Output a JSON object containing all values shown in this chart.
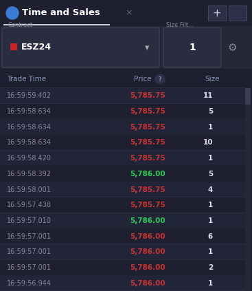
{
  "title": "Time and Sales",
  "bg_color": "#1e2030",
  "title_bar_bg": "#1e2030",
  "controls_bg": "#252838",
  "rows_bg": "#1e2030",
  "contract_label": "Contract",
  "contract_value": "ESZ24",
  "contract_box_color": "#2a2d40",
  "contract_indicator_color": "#cc2222",
  "size_filter_label": "Size Filt...",
  "size_filter_value": "1",
  "rows": [
    {
      "time": "16:59:59.402",
      "price": "5,785.75",
      "size": "11",
      "price_color": "#cc3333"
    },
    {
      "time": "16:59:58.634",
      "price": "5,785.75",
      "size": "5",
      "price_color": "#cc3333"
    },
    {
      "time": "16:59:58.634",
      "price": "5,785.75",
      "size": "1",
      "price_color": "#cc3333"
    },
    {
      "time": "16:59:58.634",
      "price": "5,785.75",
      "size": "10",
      "price_color": "#cc3333"
    },
    {
      "time": "16:59:58.420",
      "price": "5,785.75",
      "size": "1",
      "price_color": "#cc3333"
    },
    {
      "time": "16:59:58.392",
      "price": "5,786.00",
      "size": "5",
      "price_color": "#2ecc55"
    },
    {
      "time": "16:59:58.001",
      "price": "5,785.75",
      "size": "4",
      "price_color": "#cc3333"
    },
    {
      "time": "16:59:57.438",
      "price": "5,785.75",
      "size": "1",
      "price_color": "#cc3333"
    },
    {
      "time": "16:59:57.010",
      "price": "5,786.00",
      "size": "1",
      "price_color": "#2ecc55"
    },
    {
      "time": "16:59:57.001",
      "price": "5,786.00",
      "size": "6",
      "price_color": "#cc3333"
    },
    {
      "time": "16:59:57.001",
      "price": "5,786.00",
      "size": "1",
      "price_color": "#cc3333"
    },
    {
      "time": "16:59:57.001",
      "price": "5,786.00",
      "size": "2",
      "price_color": "#cc3333"
    },
    {
      "time": "16:59:56.944",
      "price": "5,786.00",
      "size": "1",
      "price_color": "#cc3333"
    }
  ],
  "header_text_color": "#8899bb",
  "time_color": "#888899",
  "size_color": "#ddddee",
  "divider_color": "#2a2d40",
  "title_color": "#ffffff",
  "tab_underline_color": "#ccccdd",
  "scrollbar_color": "#3a3d55",
  "scrollbar_track_color": "#252838"
}
